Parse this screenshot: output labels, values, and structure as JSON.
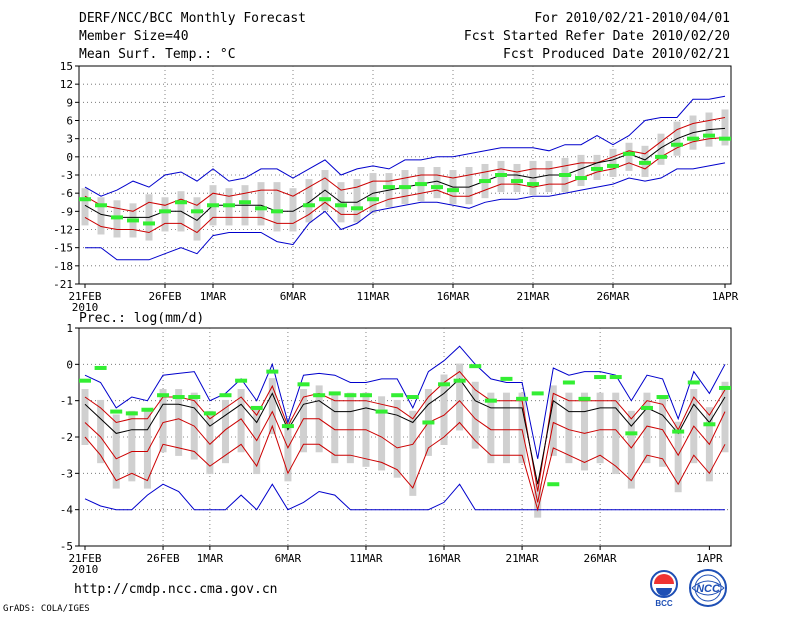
{
  "header": {
    "title": "DERF/NCC/BCC Monthly Forecast",
    "member_size": "Member Size=40",
    "variable": "Mean Surf. Temp.: °C",
    "forecast_period": "For 2010/02/21-2010/04/01",
    "fcst_started": "Fcst Started Refer Date 2010/02/20",
    "fcst_produced": "Fcst Produced Date 2010/02/21"
  },
  "footer": {
    "url": "http://cmdp.ncc.cma.gov.cn",
    "grads": "GrADS: COLA/IGES",
    "logo_bcc": "BCC",
    "logo_ncc": "NCC"
  },
  "colors": {
    "ensemble_max_min": "#0000cc",
    "spread": "#cc0000",
    "mean": "#000000",
    "observed": "#33ee33",
    "box": "#d0d0d0",
    "grid": "#666666"
  },
  "chart_data": [
    {
      "type": "line",
      "title": "Mean Surf. Temp.: °C",
      "x_ticks": [
        "21FEB",
        "26FEB",
        "1MAR",
        "6MAR",
        "11MAR",
        "16MAR",
        "21MAR",
        "26MAR",
        "1APR"
      ],
      "x_tick_index": [
        0,
        5,
        8,
        13,
        18,
        23,
        28,
        33,
        40
      ],
      "x_sub_label": "2010",
      "ylim": [
        -21,
        15
      ],
      "yticks": [
        -21,
        -18,
        -15,
        -12,
        -9,
        -6,
        -3,
        0,
        3,
        6,
        9,
        12,
        15
      ],
      "series": [
        {
          "name": "max",
          "values": [
            -5,
            -6.5,
            -5.5,
            -4,
            -5,
            -3,
            -2.5,
            -4,
            -2,
            -4,
            -3.5,
            -2,
            -2,
            -3.5,
            -2,
            -0.5,
            -3,
            -2,
            -1.5,
            -2,
            -0.5,
            -0.5,
            0,
            0,
            0.5,
            1,
            1.5,
            1.5,
            1.5,
            1,
            2,
            2,
            3.5,
            2,
            3.5,
            6,
            6.5,
            6.5,
            9.5,
            9.5,
            10
          ]
        },
        {
          "name": "upper",
          "values": [
            -6.5,
            -8,
            -8.5,
            -9,
            -7.5,
            -8,
            -7,
            -8,
            -6,
            -6.5,
            -6,
            -5.5,
            -5.5,
            -6.5,
            -5,
            -3.5,
            -5.5,
            -5,
            -4,
            -4,
            -3.5,
            -3,
            -3,
            -3.5,
            -3,
            -2.5,
            -2,
            -2.5,
            -2,
            -2,
            -1.5,
            -1,
            -1,
            0,
            1,
            0.5,
            2.5,
            4.5,
            5.5,
            6,
            6.5
          ]
        },
        {
          "name": "mean",
          "values": [
            -8,
            -9.5,
            -10,
            -10,
            -10,
            -9,
            -9,
            -10.5,
            -8,
            -8,
            -8,
            -8,
            -9,
            -9,
            -7.5,
            -5.5,
            -7.5,
            -7.5,
            -6,
            -5.5,
            -5,
            -4.5,
            -4,
            -5,
            -5,
            -4,
            -3,
            -3,
            -3.5,
            -3,
            -3,
            -2,
            -1,
            -0.5,
            0.5,
            -0.5,
            1.5,
            3,
            4,
            4.5,
            4.7
          ]
        },
        {
          "name": "lower",
          "values": [
            -10,
            -11.5,
            -12,
            -12,
            -12.5,
            -11,
            -11,
            -12.5,
            -10,
            -10,
            -10,
            -10,
            -11,
            -11,
            -9.5,
            -7.5,
            -9.5,
            -9.5,
            -8,
            -7,
            -6.5,
            -6,
            -5.5,
            -6.5,
            -6.5,
            -5.5,
            -4.5,
            -4.5,
            -5,
            -4.5,
            -4.5,
            -3.5,
            -2.5,
            -2,
            -1,
            -2,
            0,
            1.5,
            2.5,
            3,
            3.2
          ]
        },
        {
          "name": "min",
          "values": [
            -15,
            -15,
            -17,
            -17,
            -17,
            -16,
            -15,
            -16,
            -13,
            -12.5,
            -12.5,
            -12.5,
            -14,
            -14.5,
            -11,
            -9,
            -12,
            -11,
            -9,
            -8.5,
            -8,
            -7.5,
            -7.5,
            -8,
            -8.5,
            -7.5,
            -7,
            -7,
            -6.5,
            -6.5,
            -6,
            -5.5,
            -5,
            -4.5,
            -3.5,
            -4,
            -3.5,
            -2,
            -2,
            -1.5,
            -1
          ]
        },
        {
          "name": "observed",
          "values": [
            -7,
            -8,
            -10,
            -10.5,
            -11,
            -9,
            -7.5,
            -9,
            -8,
            -8,
            -7.5,
            -8.5,
            -9,
            null,
            -8,
            -7,
            -8,
            -8.5,
            -7,
            -5,
            -5,
            -4.5,
            -5,
            -5.5,
            null,
            -4,
            -3,
            -4,
            -4.5,
            null,
            -3,
            -3.5,
            -2,
            -1.5,
            0.5,
            -1,
            0,
            2,
            3,
            3.5,
            3
          ]
        }
      ]
    },
    {
      "type": "line",
      "title": "Prec.: log(mm/d)",
      "x_ticks": [
        "21FEB",
        "26FEB",
        "1MAR",
        "6MAR",
        "11MAR",
        "16MAR",
        "21MAR",
        "26MAR",
        "1APR"
      ],
      "x_tick_index": [
        0,
        5,
        8,
        13,
        18,
        23,
        28,
        33,
        40
      ],
      "x_sub_label": "2010",
      "ylim": [
        -5,
        1
      ],
      "yticks": [
        -5,
        -4,
        -3,
        -2,
        -1,
        0,
        1
      ],
      "series": [
        {
          "name": "max",
          "values": [
            -0.3,
            -0.5,
            -1.2,
            -0.9,
            -1,
            -0.3,
            -0.25,
            -0.2,
            -1,
            -0.8,
            -0.4,
            -1,
            0,
            -1.6,
            -0.3,
            -0.25,
            -0.3,
            -0.5,
            -0.5,
            -0.4,
            -0.4,
            -1.2,
            -0.2,
            0.1,
            0.5,
            0,
            -0.4,
            -0.5,
            -0.5,
            -2.6,
            -0.1,
            -0.3,
            -0.2,
            -0.2,
            -0.3,
            -1,
            -0.3,
            -0.4,
            -1.5,
            -0.2,
            -0.8,
            0
          ]
        },
        {
          "name": "upper",
          "values": [
            -0.9,
            -1.2,
            -1.6,
            -1.5,
            -1.5,
            -0.9,
            -0.9,
            -1,
            -1.5,
            -1.2,
            -0.9,
            -1.4,
            -0.6,
            -1.7,
            -0.9,
            -0.8,
            -1,
            -1,
            -1,
            -1.1,
            -1.2,
            -1.5,
            -0.9,
            -0.5,
            -0.2,
            -0.7,
            -1,
            -1,
            -1,
            -3.5,
            -0.8,
            -1,
            -1,
            -1,
            -1,
            -1.5,
            -1,
            -1.1,
            -1.8,
            -0.9,
            -1.4,
            -0.7
          ]
        },
        {
          "name": "mean",
          "values": [
            -1.1,
            -1.5,
            -1.9,
            -1.8,
            -1.8,
            -1.1,
            -1.1,
            -1.2,
            -1.7,
            -1.4,
            -1.1,
            -1.6,
            -0.8,
            -1.8,
            -1.1,
            -1,
            -1.3,
            -1.3,
            -1.2,
            -1.3,
            -1.4,
            -1.6,
            -1.1,
            -0.8,
            -0.4,
            -1,
            -1.2,
            -1.2,
            -1.2,
            -3.3,
            -1,
            -1.3,
            -1.3,
            -1.2,
            -1.2,
            -1.7,
            -1.2,
            -1.4,
            -1.9,
            -1.1,
            -1.6,
            -0.9
          ]
        },
        {
          "name": "lower",
          "values": [
            -1.6,
            -2,
            -2.6,
            -2.4,
            -2.4,
            -1.6,
            -1.5,
            -1.7,
            -2.2,
            -1.8,
            -1.5,
            -2.1,
            -1.3,
            -2.3,
            -1.5,
            -1.5,
            -1.8,
            -1.8,
            -1.8,
            -2,
            -2.3,
            -2.2,
            -1.6,
            -1.4,
            -1,
            -1.5,
            -1.8,
            -1.8,
            -1.8,
            -3.8,
            -1.6,
            -1.8,
            -1.9,
            -1.8,
            -1.8,
            -2.3,
            -1.7,
            -1.8,
            -2.5,
            -1.7,
            -2.2,
            -1.3
          ]
        },
        {
          "name": "lowest",
          "values": [
            -2,
            -2.5,
            -3.2,
            -3,
            -3.2,
            -2.2,
            -2.3,
            -2.4,
            -2.8,
            -2.5,
            -2.2,
            -2.8,
            -1.7,
            -3,
            -2.2,
            -2.2,
            -2.5,
            -2.5,
            -2.6,
            -2.7,
            -2.9,
            -3.4,
            -2.3,
            -2,
            -1.6,
            -2.1,
            -2.5,
            -2.5,
            -2.5,
            -4,
            -2.3,
            -2.5,
            -2.7,
            -2.5,
            -2.8,
            -3.2,
            -2.5,
            -2.6,
            -3.3,
            -2.5,
            -3,
            -2.2
          ]
        },
        {
          "name": "min",
          "values": [
            -3.7,
            -3.9,
            -4,
            -4,
            -3.6,
            -3.3,
            -3.5,
            -4,
            -4,
            -4,
            -3.6,
            -4,
            -3.3,
            -4,
            -3.8,
            -3.5,
            -3.6,
            -4,
            -4,
            -4,
            -4,
            -4,
            -4,
            -3.8,
            -3.3,
            -4,
            -4,
            -4,
            -4,
            -4,
            -4,
            -4,
            -4,
            -4,
            -4,
            -4,
            -4,
            -4,
            -4,
            -4,
            -4,
            -4
          ]
        },
        {
          "name": "observed",
          "values": [
            -0.45,
            -0.1,
            -1.3,
            -1.35,
            -1.25,
            -0.85,
            -0.9,
            -0.9,
            -1.35,
            -0.85,
            -0.45,
            -1.2,
            -0.2,
            -1.7,
            -0.55,
            -0.85,
            -0.8,
            -0.85,
            -0.85,
            -1.3,
            -0.85,
            -0.9,
            -1.6,
            -0.55,
            -0.45,
            -0.05,
            -1,
            -0.4,
            -0.95,
            -0.8,
            -3.3,
            -0.5,
            -0.95,
            -0.35,
            -0.35,
            -1.9,
            -1.2,
            -0.9,
            -1.85,
            -0.5,
            -1.65,
            -0.65
          ]
        }
      ]
    }
  ]
}
